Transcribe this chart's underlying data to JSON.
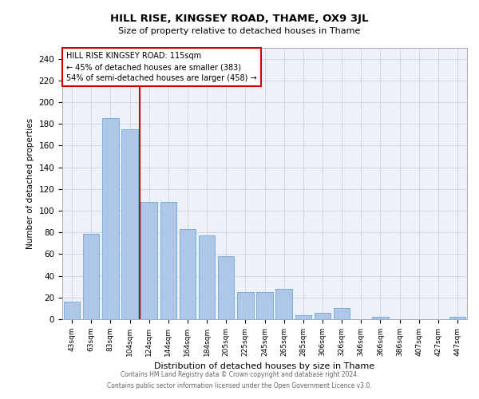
{
  "title": "HILL RISE, KINGSEY ROAD, THAME, OX9 3JL",
  "subtitle": "Size of property relative to detached houses in Thame",
  "xlabel": "Distribution of detached houses by size in Thame",
  "ylabel": "Number of detached properties",
  "categories": [
    "43sqm",
    "63sqm",
    "83sqm",
    "104sqm",
    "124sqm",
    "144sqm",
    "164sqm",
    "184sqm",
    "205sqm",
    "225sqm",
    "245sqm",
    "265sqm",
    "285sqm",
    "306sqm",
    "326sqm",
    "346sqm",
    "366sqm",
    "386sqm",
    "407sqm",
    "427sqm",
    "447sqm"
  ],
  "values": [
    16,
    79,
    185,
    175,
    108,
    108,
    83,
    77,
    58,
    25,
    25,
    28,
    4,
    6,
    10,
    0,
    2,
    0,
    0,
    0,
    2
  ],
  "bar_color": "#aec6e8",
  "bar_edge_color": "#5a9fd4",
  "grid_color": "#d0d8e8",
  "background_color": "#eef2f8",
  "vline_x": 3.5,
  "vline_color": "#cc0000",
  "annotation_text": "HILL RISE KINGSEY ROAD: 115sqm\n← 45% of detached houses are smaller (383)\n54% of semi-detached houses are larger (458) →",
  "annotation_box_color": "#cc0000",
  "footer_line1": "Contains HM Land Registry data © Crown copyright and database right 2024.",
  "footer_line2": "Contains public sector information licensed under the Open Government Licence v3.0.",
  "ylim": [
    0,
    250
  ],
  "yticks": [
    0,
    20,
    40,
    60,
    80,
    100,
    120,
    140,
    160,
    180,
    200,
    220,
    240
  ]
}
